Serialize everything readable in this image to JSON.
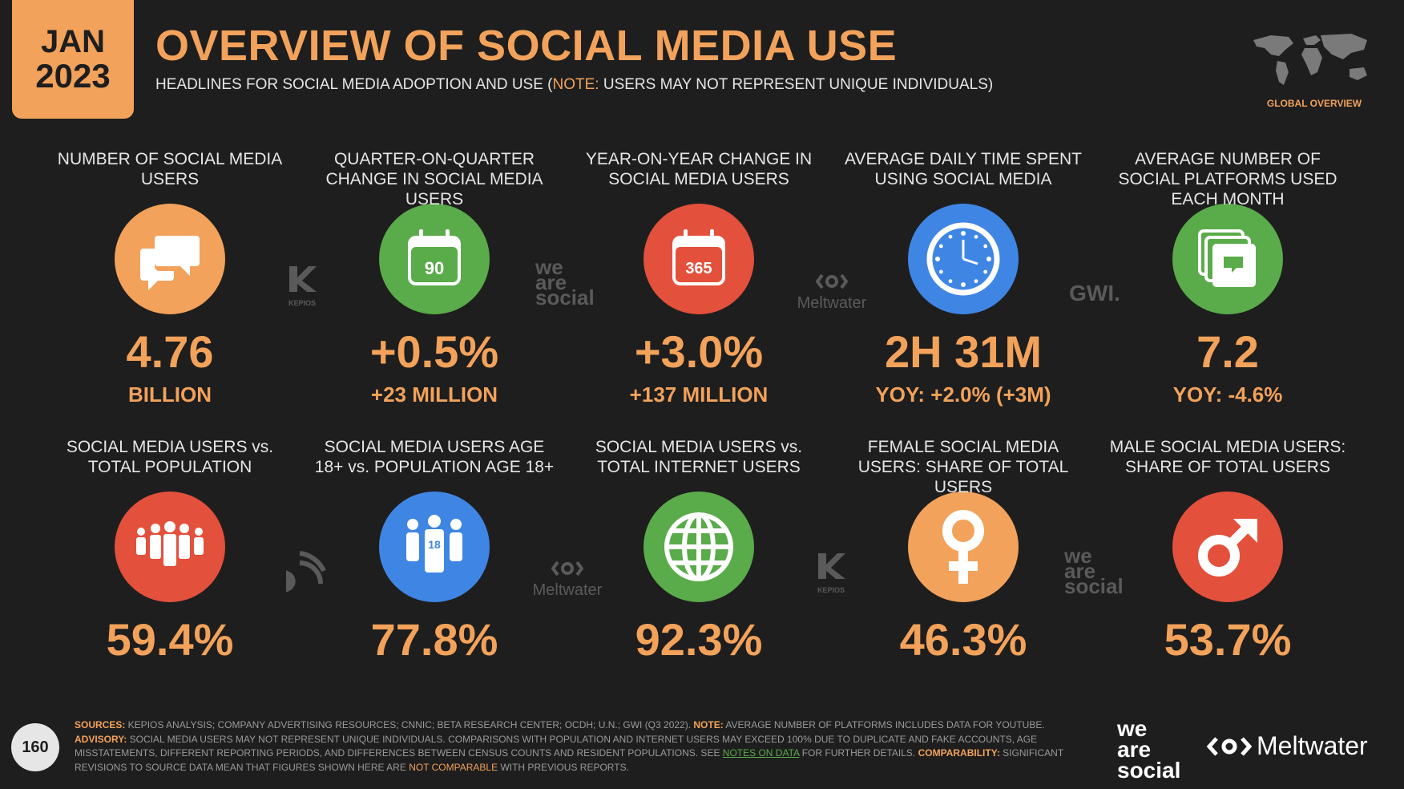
{
  "header": {
    "month": "JAN",
    "year": "2023",
    "title": "OVERVIEW OF SOCIAL MEDIA USE",
    "subtitle_pre": "HEADLINES FOR SOCIAL MEDIA ADOPTION AND USE (",
    "subtitle_note": "NOTE:",
    "subtitle_post": " USERS MAY NOT REPRESENT UNIQUE INDIVIDUALS)",
    "global_label": "GLOBAL OVERVIEW"
  },
  "row1": [
    {
      "label": "NUMBER OF SOCIAL MEDIA USERS",
      "value": "4.76",
      "sub": "BILLION",
      "color": "#f2a25a",
      "icon": "speech-bubbles-icon"
    },
    {
      "label": "QUARTER-ON-QUARTER CHANGE IN SOCIAL MEDIA USERS",
      "value": "+0.5%",
      "sub": "+23 MILLION",
      "color": "#5aab4a",
      "icon": "calendar-90-icon",
      "icon_text": "90"
    },
    {
      "label": "YEAR-ON-YEAR CHANGE IN SOCIAL MEDIA USERS",
      "value": "+3.0%",
      "sub": "+137 MILLION",
      "color": "#e3503c",
      "icon": "calendar-365-icon",
      "icon_text": "365"
    },
    {
      "label": "AVERAGE DAILY TIME SPENT USING SOCIAL MEDIA",
      "value": "2H 31M",
      "sub": "YOY: +2.0% (+3M)",
      "color": "#3f86e4",
      "icon": "clock-icon"
    },
    {
      "label": "AVERAGE NUMBER OF SOCIAL PLATFORMS USED EACH MONTH",
      "value": "7.2",
      "sub": "YOY: -4.6%",
      "color": "#5aab4a",
      "icon": "stacked-cards-icon"
    }
  ],
  "row2": [
    {
      "label": "SOCIAL MEDIA USERS vs. TOTAL POPULATION",
      "value": "59.4%",
      "color": "#e3503c",
      "icon": "people-group-icon"
    },
    {
      "label": "SOCIAL MEDIA USERS AGE 18+ vs. POPULATION AGE 18+",
      "value": "77.8%",
      "color": "#3f86e4",
      "icon": "adults-18-icon",
      "icon_text": "18"
    },
    {
      "label": "SOCIAL MEDIA USERS vs. TOTAL INTERNET USERS",
      "value": "92.3%",
      "color": "#5aab4a",
      "icon": "globe-icon"
    },
    {
      "label": "FEMALE SOCIAL MEDIA USERS: SHARE OF TOTAL USERS",
      "value": "46.3%",
      "color": "#f2a25a",
      "icon": "female-symbol-icon"
    },
    {
      "label": "MALE SOCIAL MEDIA USERS: SHARE OF TOTAL USERS",
      "value": "53.7%",
      "color": "#e3503c",
      "icon": "male-symbol-icon"
    }
  ],
  "watermarks": {
    "kepios": "KEPIOS",
    "we": "we",
    "are": "are",
    "social": "social",
    "meltwater": "Meltwater",
    "gwi": "GWI."
  },
  "footer": {
    "page": "160",
    "sources_label": "SOURCES:",
    "sources_text": " KEPIOS ANALYSIS; COMPANY ADVERTISING RESOURCES; CNNIC; BETA RESEARCH CENTER; OCDH; U.N.; GWI (Q3 2022). ",
    "note_label": "NOTE:",
    "note_text": " AVERAGE NUMBER OF PLATFORMS INCLUDES DATA FOR YOUTUBE.",
    "advisory_label": "ADVISORY:",
    "advisory_text": " SOCIAL MEDIA USERS MAY NOT REPRESENT UNIQUE INDIVIDUALS. COMPARISONS WITH POPULATION AND INTERNET USERS MAY EXCEED 100% DUE TO DUPLICATE AND FAKE ACCOUNTS, AGE MISSTATEMENTS, DIFFERENT REPORTING PERIODS, AND DIFFERENCES BETWEEN CENSUS COUNTS AND RESIDENT POPULATIONS. SEE ",
    "notes_link": "NOTES ON DATA",
    "advisory_tail": " FOR FURTHER DETAILS. ",
    "comparability_label": "COMPARABILITY:",
    "comparability_text": " SIGNIFICANT REVISIONS TO SOURCE DATA MEAN THAT FIGURES SHOWN HERE ARE ",
    "not_comparable": "NOT COMPARABLE",
    "comparability_tail": " WITH PREVIOUS REPORTS.",
    "brand_we": "we",
    "brand_are": "are",
    "brand_social": "social",
    "brand_meltwater": "Meltwater"
  }
}
